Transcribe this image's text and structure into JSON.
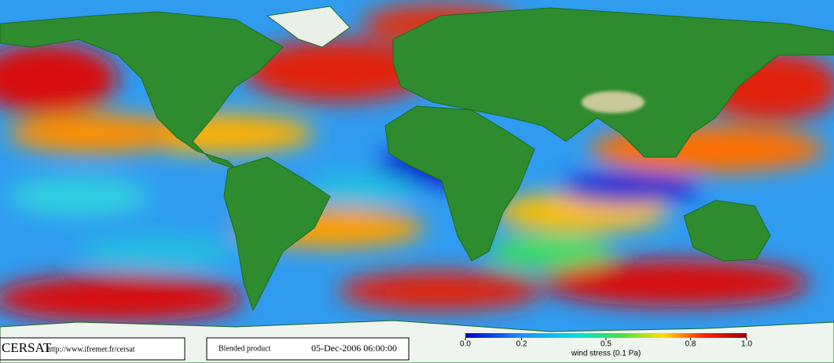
{
  "footer": {
    "logo": "CERSAT",
    "url": "http://www.ifremer.fr/cersat",
    "product": "Blended product",
    "date": "05-Dec-2006 06:00:00"
  },
  "colorbar": {
    "label": "wind stress (0.1 Pa)",
    "lim": [
      0,
      1
    ],
    "ticks": [
      {
        "value": 0,
        "label": "0.0"
      },
      0.2,
      0.5,
      0.8,
      {
        "value": 1,
        "label": "1.0"
      }
    ]
  }
}
